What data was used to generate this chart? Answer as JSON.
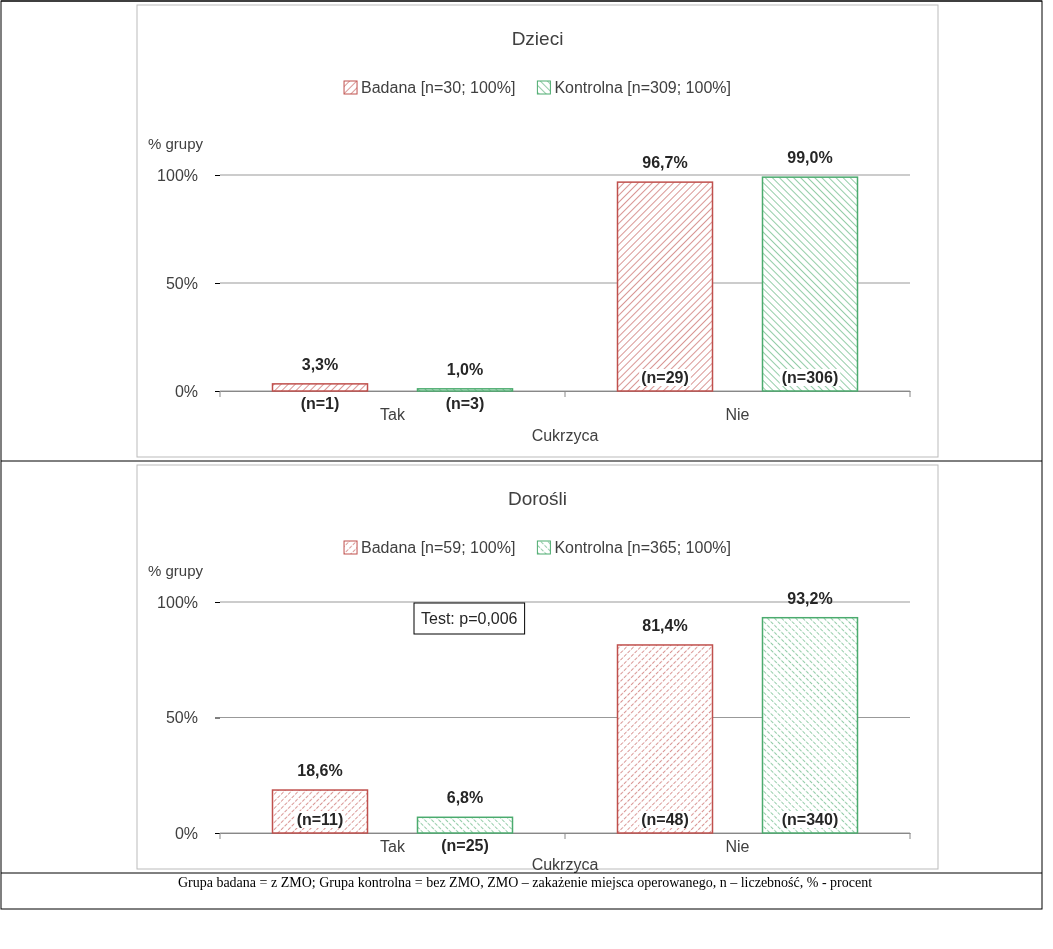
{
  "chart_data": [
    {
      "type": "bar",
      "title": "Dzieci",
      "xlabel": "Cukrzyca",
      "ylabel": "% grupy",
      "categories": [
        "Tak",
        "Nie"
      ],
      "ylim": [
        0,
        100
      ],
      "yticks": [
        {
          "value": 0,
          "label": "0%"
        },
        {
          "value": 50,
          "label": "50%"
        },
        {
          "value": 100,
          "label": "100%"
        }
      ],
      "grid": "y",
      "legend": "top",
      "series": [
        {
          "name": "Badana [n=30; 100%]",
          "color": "#c0504d",
          "values": [
            3.3,
            96.7
          ],
          "value_labels": [
            "3,3%",
            "96,7%"
          ]
        },
        {
          "name": "Kontrolna [n=309; 100%]",
          "color": "#4bab6e",
          "values": [
            1.0,
            99.0
          ],
          "value_labels": [
            "1,0%",
            "99,0%"
          ]
        }
      ],
      "annotations": [
        "(n=1)",
        "(n=3)",
        "(n=29)",
        "(n=306)"
      ]
    },
    {
      "type": "bar",
      "title": "Dorośli",
      "xlabel": "Cukrzyca",
      "ylabel": "% grupy",
      "categories": [
        "Tak",
        "Nie"
      ],
      "ylim": [
        0,
        100
      ],
      "yticks": [
        {
          "value": 0,
          "label": "0%"
        },
        {
          "value": 50,
          "label": "50%"
        },
        {
          "value": 100,
          "label": "100%"
        }
      ],
      "grid": "y",
      "legend": "top",
      "series": [
        {
          "name": "Badana [n=59; 100%]",
          "color": "#c0504d",
          "values": [
            18.6,
            81.4
          ],
          "value_labels": [
            "18,6%",
            "81,4%"
          ]
        },
        {
          "name": "Kontrolna [n=365; 100%]",
          "color": "#4bab6e",
          "values": [
            6.8,
            93.2
          ],
          "value_labels": [
            "6,8%",
            "93,2%"
          ]
        }
      ],
      "annotations": [
        "(n=11)",
        "(n=25)",
        "(n=48)",
        "(n=340)",
        "Test: p=0,006",
        "Grupa badana = z ZMO; Grupa kontrolna = bez ZMO, ZMO – zakażenie miejsca operowanego, n  –  liczebność, % - procent"
      ]
    }
  ]
}
